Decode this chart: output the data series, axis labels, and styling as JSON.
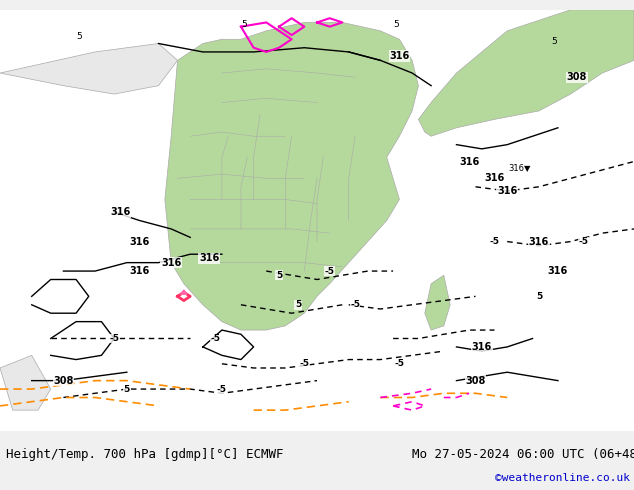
{
  "title_left": "Height/Temp. 700 hPa [gdmp][°C] ECMWF",
  "title_right": "Mo 27-05-2024 06:00 UTC (06+48)",
  "copyright": "©weatheronline.co.uk",
  "bg_color": "#f0f0f0",
  "land_green": "#b5d99c",
  "land_light": "#e8e8e8",
  "ocean_color": "#ffffff",
  "contour_black": "#000000",
  "contour_orange": "#ff8c00",
  "contour_magenta": "#ff00cc",
  "contour_red": "#ff0000",
  "border_color": "#aaaaaa",
  "font_size_labels": 8,
  "font_size_title": 9,
  "font_size_copyright": 8,
  "fig_width": 6.34,
  "fig_height": 4.9,
  "dpi": 100
}
